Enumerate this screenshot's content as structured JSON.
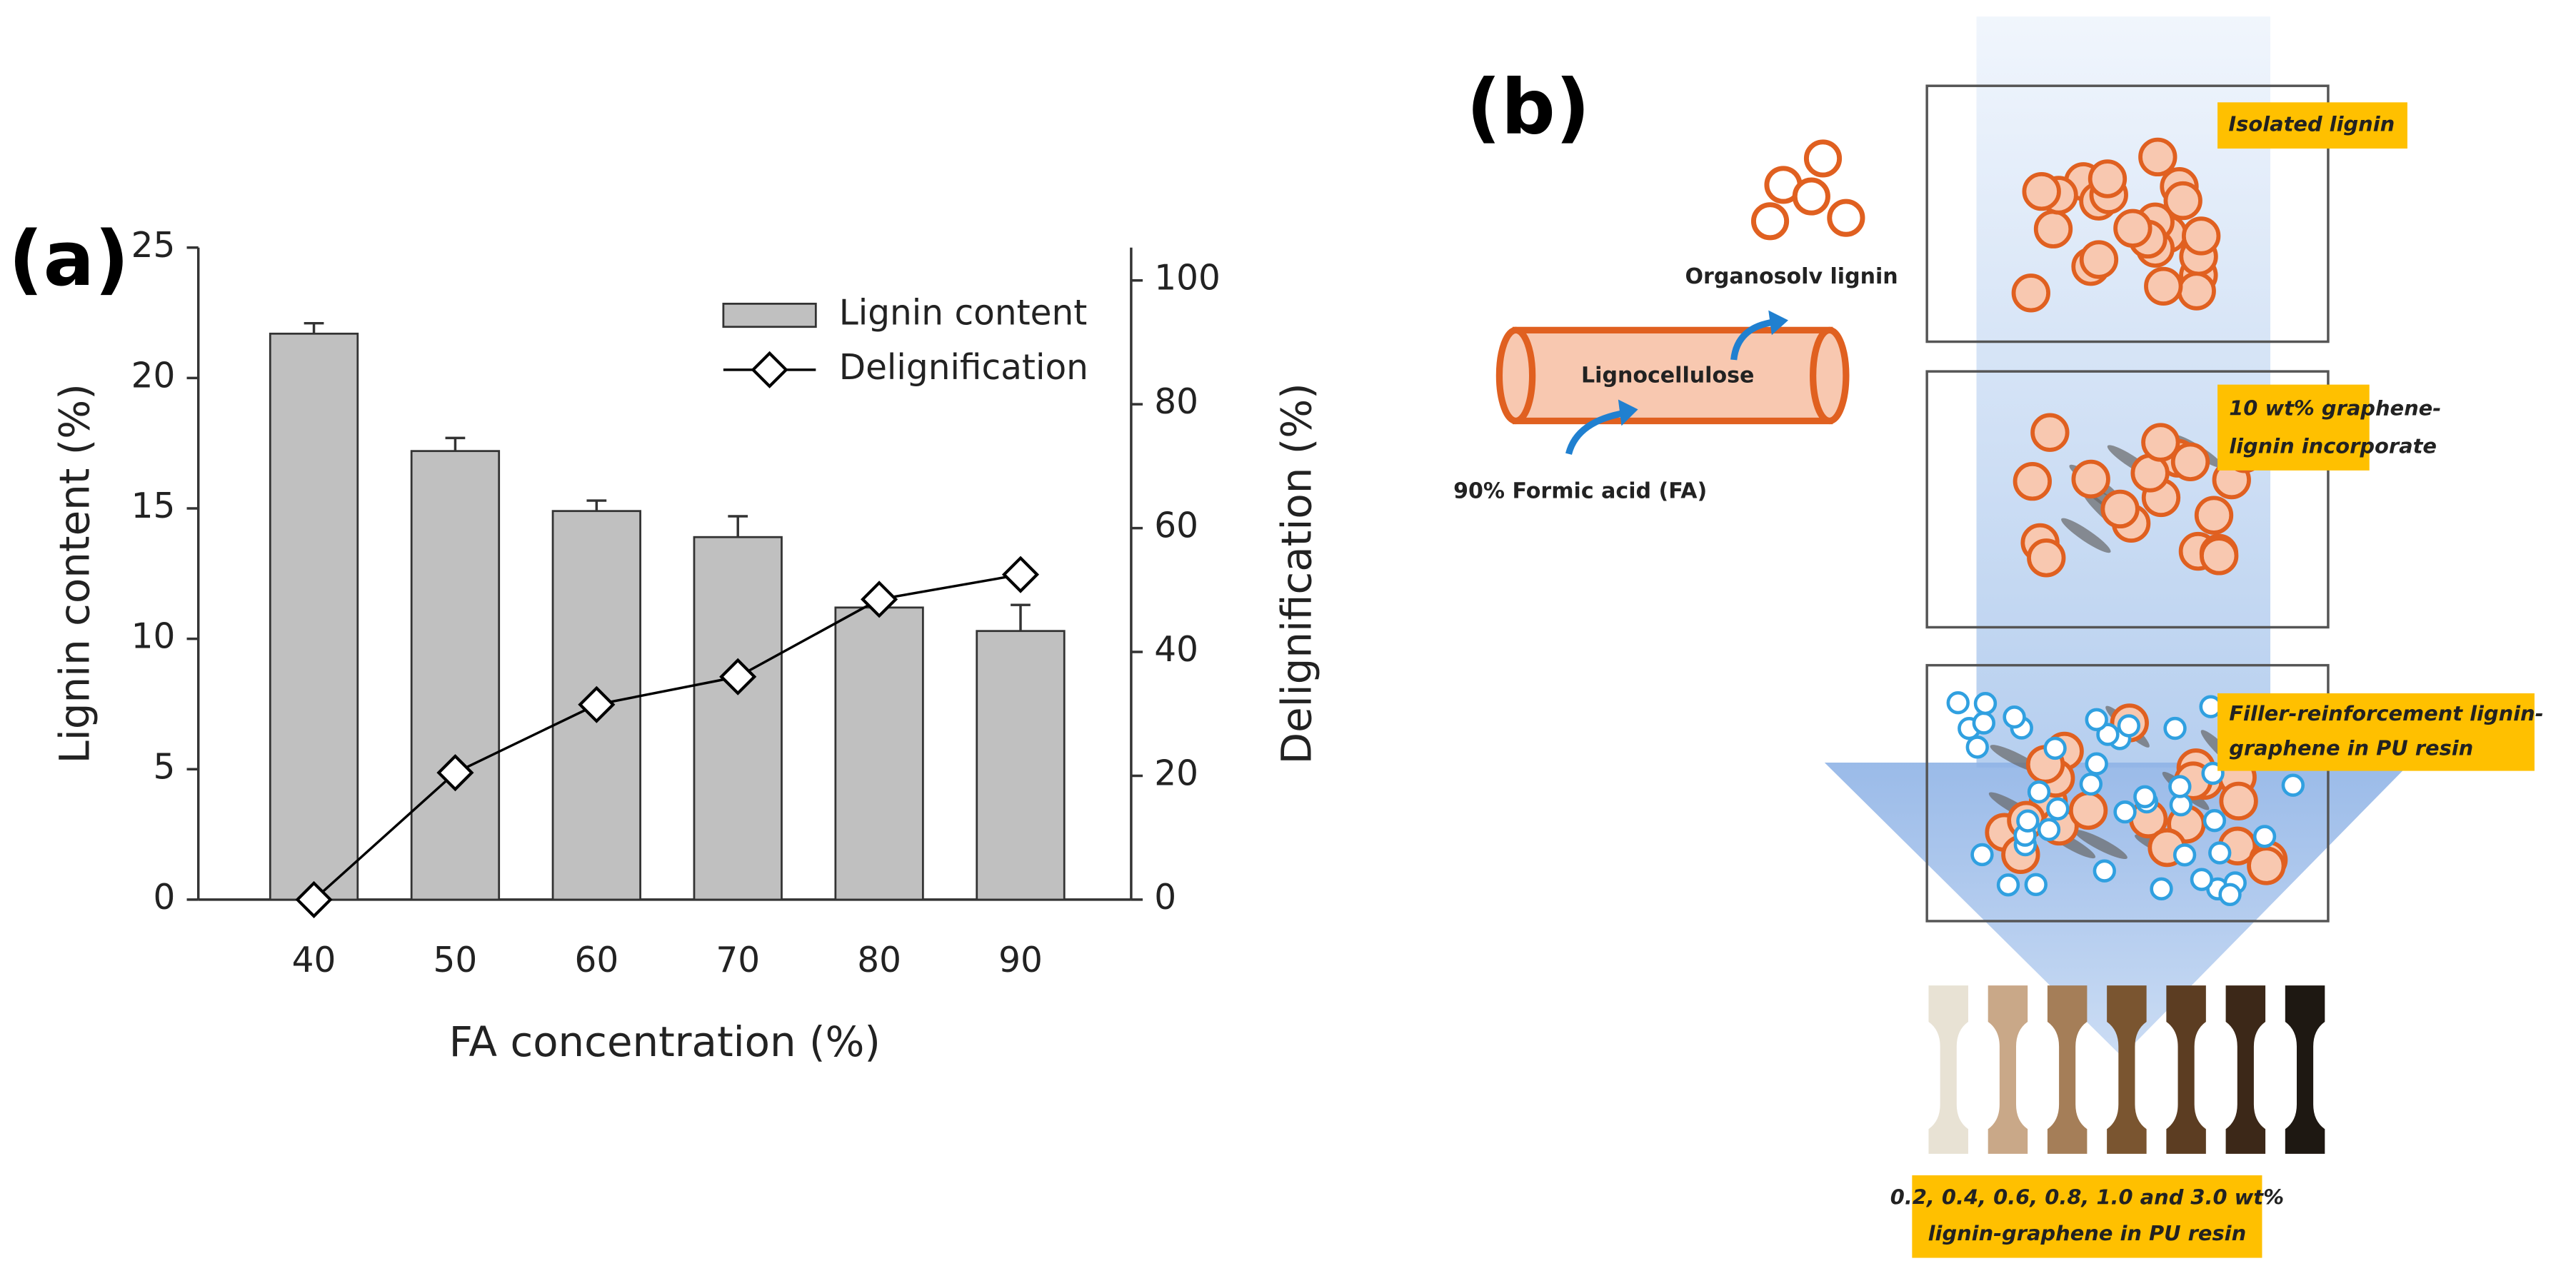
{
  "panel_labels": [
    "(a)",
    "(b)"
  ],
  "chart_data": {
    "type": "bar",
    "xlabel": "FA concentration (%)",
    "ylabel": "Lignin content (%)",
    "y2label": "Delignification (%)",
    "categories": [
      40,
      50,
      60,
      70,
      80,
      90
    ],
    "series": [
      {
        "name": "Lignin content",
        "type": "bar",
        "color": "#c0c0c0",
        "values": [
          21.7,
          17.2,
          14.9,
          13.9,
          11.2,
          10.3
        ],
        "errors": [
          0.4,
          0.5,
          0.4,
          0.8,
          0.0,
          1.0
        ]
      },
      {
        "name": "Delignification",
        "type": "line",
        "axis": "y2",
        "color": "#000000",
        "values": [
          0,
          20.5,
          31.5,
          36,
          48.5,
          52.5
        ],
        "errors": [
          0,
          1.5,
          2,
          1,
          1.5,
          1.5
        ]
      }
    ],
    "ylim": [
      0,
      25
    ],
    "yticks": [
      0,
      5,
      10,
      15,
      20,
      25
    ],
    "y2lim": [
      0,
      105.3
    ],
    "y2ticks": [
      0,
      20,
      40,
      60,
      80,
      100
    ],
    "legend": "upper right"
  },
  "diagram": {
    "organosolv": "Organosolv lignin",
    "lignocellulose": "Lignocellulose",
    "formic_acid": "90% Formic acid (FA)",
    "box1": [
      "Isolated lignin"
    ],
    "box2": [
      "10 wt% graphene-",
      "lignin incorporate"
    ],
    "box3": [
      "Filler-reinforcement  lignin-",
      "graphene in PU resin"
    ],
    "samples": [
      "0.2, 0.4, 0.6, 0.8, 1.0 and 3.0 wt%",
      "lignin-graphene  in PU resin"
    ]
  }
}
